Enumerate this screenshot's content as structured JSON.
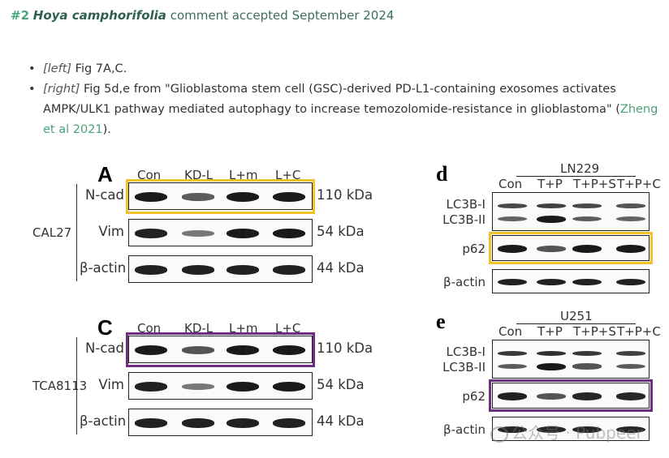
{
  "header": {
    "num": "#2",
    "species": "Hoya camphorifolia",
    "rest": "comment accepted September 2024"
  },
  "notes": {
    "left_tag": "[left]",
    "left_text": "Fig 7A,C.",
    "right_tag": "[right]",
    "right_text": "Fig 5d,e from \"Glioblastoma stem cell (GSC)-derived PD-L1-containing exosomes activates AMPK/ULK1 pathway mediated autophagy to increase temozolomide-resistance in glioblastoma\" (",
    "right_link": "Zheng et al 2021",
    "right_end": ")."
  },
  "left_figure": {
    "colors": {
      "highlight_A": "#f2c12e",
      "highlight_C": "#6d2f86"
    },
    "panel_A": {
      "label": "A",
      "lanes": [
        "Con",
        "KD-L",
        "L+m",
        "L+C"
      ],
      "cell_line": "CAL27",
      "rows": [
        {
          "name": "N-cad",
          "size": "110 kDa",
          "intensities": [
            1.0,
            0.55,
            1.0,
            1.0
          ]
        },
        {
          "name": "Vim",
          "size": "54 kDa",
          "intensities": [
            0.95,
            0.35,
            1.0,
            1.0
          ]
        },
        {
          "name": "β-actin",
          "size": "44 kDa",
          "intensities": [
            0.95,
            0.95,
            0.95,
            0.95
          ]
        }
      ]
    },
    "panel_C": {
      "label": "C",
      "lanes": [
        "Con",
        "KD-L",
        "L+m",
        "L+C"
      ],
      "cell_line": "TCA8113",
      "rows": [
        {
          "name": "N-cad",
          "size": "110 kDa",
          "intensities": [
            1.0,
            0.6,
            1.0,
            1.0
          ]
        },
        {
          "name": "Vim",
          "size": "54 kDa",
          "intensities": [
            0.95,
            0.35,
            1.0,
            1.0
          ]
        },
        {
          "name": "β-actin",
          "size": "44 kDa",
          "intensities": [
            0.95,
            0.95,
            0.95,
            0.95
          ]
        }
      ]
    }
  },
  "right_figure": {
    "colors": {
      "highlight_d": "#f2c12e",
      "highlight_e": "#6d2f86"
    },
    "panel_d": {
      "label": "d",
      "group": "LN229",
      "lanes": [
        "Con",
        "T+P",
        "T+P+S",
        "T+P+C"
      ],
      "lc3_top": "LC3B-I",
      "lc3_bottom": "LC3B-II",
      "p62": "p62",
      "actin": "β-actin",
      "lc3_i": [
        0.7,
        0.75,
        0.7,
        0.6
      ],
      "lc3_ii": [
        0.5,
        1.0,
        0.55,
        0.5
      ],
      "p62_vals": [
        1.0,
        0.6,
        1.0,
        1.0
      ],
      "actin_vals": [
        0.95,
        0.95,
        0.95,
        0.95
      ]
    },
    "panel_e": {
      "label": "e",
      "group": "U251",
      "lanes": [
        "Con",
        "T+P",
        "T+P+S",
        "T+P+C"
      ],
      "lc3_top": "LC3B-I",
      "lc3_bottom": "LC3B-II",
      "p62": "p62",
      "actin": "β-actin",
      "lc3_i": [
        0.8,
        0.85,
        0.8,
        0.75
      ],
      "lc3_ii": [
        0.55,
        1.0,
        0.6,
        0.55
      ],
      "p62_vals": [
        0.95,
        0.6,
        0.9,
        0.9
      ],
      "actin_vals": [
        0.9,
        0.9,
        0.9,
        0.9
      ]
    }
  },
  "watermark": {
    "text": "公众号 · Pubpeer"
  }
}
